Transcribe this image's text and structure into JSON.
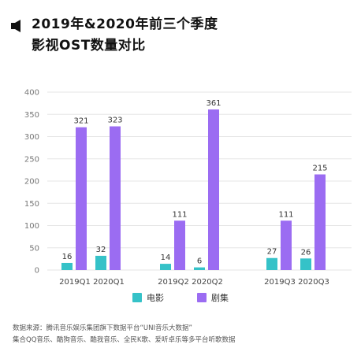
{
  "header": {
    "title_line1": "2019年&2020年前三个季度",
    "title_line2": "影视OST数量对比",
    "marker_icon": "speaker-icon"
  },
  "colors": {
    "movie": "#35c2c8",
    "tv": "#9b6cf2",
    "axis_text": "#777777",
    "grid": "#e5e5e5"
  },
  "chart_data": {
    "type": "bar",
    "categories": [
      "2019Q1",
      "2020Q1",
      "2019Q2",
      "2020Q2",
      "2019Q3",
      "2020Q3"
    ],
    "series": [
      {
        "name": "电影",
        "values": [
          16,
          32,
          14,
          6,
          27,
          26
        ]
      },
      {
        "name": "剧集",
        "values": [
          321,
          323,
          111,
          361,
          111,
          215
        ]
      }
    ],
    "ylim": [
      0,
      400
    ],
    "yticks": [
      0,
      50,
      100,
      150,
      200,
      250,
      300,
      350,
      400
    ],
    "grid": true,
    "legend_position": "bottom-center"
  },
  "legend": {
    "movie_label": "电影",
    "tv_label": "剧集"
  },
  "source": {
    "line1": "数据来源：腾讯音乐娱乐集团旗下数据平台“UNI音乐大数据”",
    "line2": "集合QQ音乐、酷狗音乐、酷我音乐、全民K歌、爱听卓乐等多平台听歌数据"
  }
}
